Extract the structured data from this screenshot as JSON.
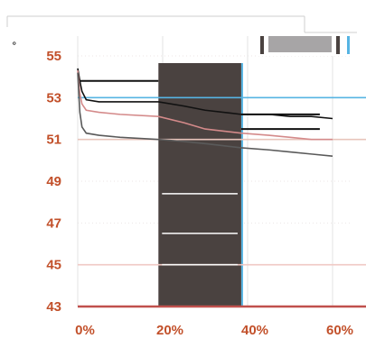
{
  "chart_data": {
    "type": "line",
    "title": "",
    "ylabel": "°",
    "xlabel": "",
    "xlim": [
      0,
      60
    ],
    "ylim": [
      43,
      55
    ],
    "x_ticks": [
      "0%",
      "20%",
      "40%",
      "60%"
    ],
    "y_ticks": [
      "55",
      "53",
      "51",
      "49",
      "47",
      "45",
      "43"
    ],
    "grid": true,
    "shaded_region": {
      "from": 19,
      "to": 38.5,
      "color": "#4a4240"
    },
    "reference_lines": [
      {
        "y": 53.0,
        "color": "#56b4e3"
      },
      {
        "y": 51.0,
        "color": "#e8c4bb"
      },
      {
        "y": 45.0,
        "color": "#f0c9c4"
      },
      {
        "y": 43.0,
        "color": "#c0504d"
      }
    ],
    "series": [
      {
        "name": "",
        "color": "#111111",
        "x": [
          0,
          0.5,
          1,
          2,
          5,
          10,
          19,
          25,
          30,
          38.5,
          45,
          50,
          55,
          60
        ],
        "y": [
          54.4,
          53.8,
          53.3,
          52.9,
          52.8,
          52.8,
          52.8,
          52.6,
          52.4,
          52.2,
          52.2,
          52.1,
          52.1,
          52.0
        ]
      },
      {
        "name": "",
        "color": "#d48a8a",
        "x": [
          0,
          0.5,
          1,
          2,
          5,
          10,
          19,
          25,
          30,
          38.5,
          45,
          50,
          55,
          60
        ],
        "y": [
          54.3,
          53.2,
          52.7,
          52.4,
          52.3,
          52.2,
          52.1,
          51.8,
          51.5,
          51.3,
          51.2,
          51.1,
          51.0,
          51.0
        ]
      },
      {
        "name": "",
        "color": "#5a5a5a",
        "x": [
          0,
          0.5,
          1,
          2,
          5,
          10,
          19,
          25,
          30,
          38.5,
          45,
          50,
          55,
          60
        ],
        "y": [
          54.2,
          52.3,
          51.6,
          51.3,
          51.2,
          51.1,
          51.0,
          50.9,
          50.8,
          50.6,
          50.5,
          50.4,
          50.3,
          50.2
        ]
      }
    ],
    "segments": [
      {
        "x0": 0.5,
        "x1": 19,
        "y": 53.8,
        "color": "#111111"
      },
      {
        "x0": 38.5,
        "x1": 57,
        "y": 52.2,
        "color": "#111111"
      },
      {
        "x0": 38.5,
        "x1": 57,
        "y": 51.5,
        "color": "#111111"
      }
    ],
    "series_labels": [
      {
        "text": "",
        "y": 48.4
      },
      {
        "text": "",
        "y": 46.5
      },
      {
        "text": "",
        "y": 45.0
      }
    ],
    "legend": {
      "position": "top-right",
      "swatch_colors": [
        "#ffffff",
        "#ffffff",
        "#a7a5a6",
        "#ffffff"
      ]
    }
  }
}
